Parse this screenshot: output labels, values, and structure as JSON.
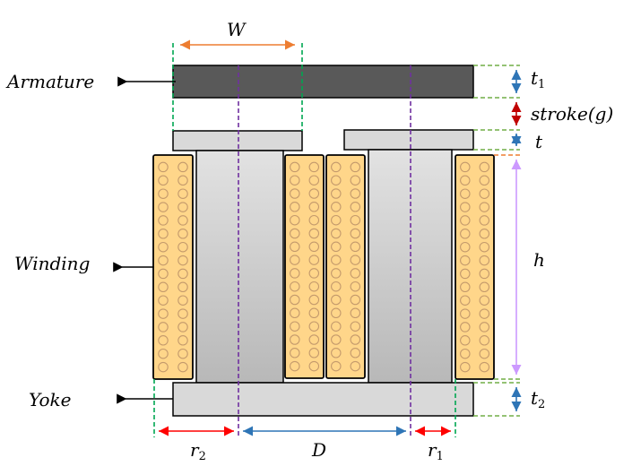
{
  "labels": {
    "armature": "Armature",
    "winding": "Winding",
    "yoke": "Yoke",
    "width": "W",
    "t1_base": "t",
    "t1_sub": "1",
    "stroke": "stroke(g)",
    "t": "t",
    "h": "h",
    "t2_base": "t",
    "t2_sub": "2",
    "r2_base": "r",
    "r2_sub": "2",
    "d": "D",
    "r1_base": "r",
    "r1_sub": "1"
  },
  "colors": {
    "armature": "#595959",
    "iron_light": "#d9d9d9",
    "iron_dark": "#bdbdbd",
    "coil_fill": "#ffd68a",
    "coil_circle": "#c49a6c",
    "green_guide": "#00a651",
    "purple_guide": "#7030a0",
    "orange_dim": "#ed7d31",
    "blue_dim": "#2e75b6",
    "dark_red_dim": "#c00000",
    "red_dim": "#ff0000",
    "violet_dim": "#cc99ff",
    "olive_guide": "#70ad47"
  },
  "coil": {
    "columns": 2,
    "rows": 16
  }
}
